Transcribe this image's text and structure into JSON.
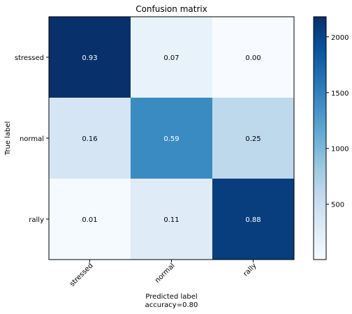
{
  "chart_data": {
    "type": "heatmap",
    "title": "Confusion matrix",
    "xlabel": "Predicted label",
    "xlabel_sub": "accuracy=0.80",
    "ylabel": "True label",
    "x_categories": [
      "stressed",
      "normal",
      "rally"
    ],
    "y_categories": [
      "stressed",
      "normal",
      "rally"
    ],
    "cell_labels": [
      [
        "0.93",
        "0.07",
        "0.00"
      ],
      [
        "0.16",
        "0.59",
        "0.25"
      ],
      [
        "0.01",
        "0.11",
        "0.88"
      ]
    ],
    "color_values": [
      [
        2180,
        165,
        4
      ],
      [
        380,
        1420,
        600
      ],
      [
        25,
        265,
        2075
      ]
    ],
    "colorbar": {
      "range": [
        4,
        2180
      ],
      "ticks": [
        500,
        1000,
        1500,
        2000
      ],
      "colormap": "Blues"
    }
  }
}
